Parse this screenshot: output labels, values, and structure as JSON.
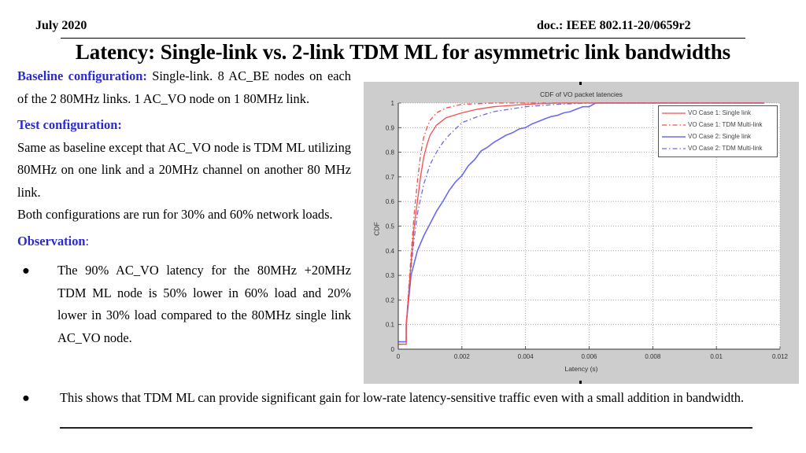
{
  "header": {
    "date": "July 2020",
    "doc_id": "doc.: IEEE 802.11-20/0659r2",
    "title": "Latency: Single-link vs.  2-link TDM ML for asymmetric link bandwidths"
  },
  "left_column": {
    "baseline_label": "Baseline configuration:",
    "baseline_text": " Single-link. 8 AC_BE nodes on each of the 2 80MHz links. 1 AC_VO node on 1 80MHz link.",
    "test_label": "Test configuration:",
    "test_text": "Same as baseline except that AC_VO node is TDM ML utilizing 80MHz on one link and a 20MHz channel on another 80 MHz link.",
    "loads_text": "Both configurations are run for 30% and 60% network loads.",
    "observation_label": "Observation",
    "observation_colon": ":",
    "bullet_char": "●",
    "observation_bullet": "The 90% AC_VO latency for the 80MHz +20MHz TDM ML node is 50% lower in 60% load and 20% lower in 30% load compared to the 80MHz single link AC_VO node."
  },
  "bottom": {
    "bullet_char": "●",
    "text": "This shows that TDM ML can provide significant gain for low-rate latency-sensitive traffic even with a small addition in bandwidth."
  },
  "colors": {
    "label_blue": "#2b2bd0",
    "case1_red": "#f05050",
    "case2_blue": "#6a6af0",
    "chart_bg": "#cdcdcd"
  },
  "chart_data": {
    "type": "line",
    "title": "CDF of VO packet latencies",
    "xlabel": "Latency (s)",
    "ylabel": "CDF",
    "xlim": [
      0,
      0.012
    ],
    "ylim": [
      0,
      1
    ],
    "xticks": [
      "0",
      "0.002",
      "0.004",
      "0.006",
      "0.008",
      "0.01",
      "0.012"
    ],
    "yticks": [
      "0",
      "0.1",
      "0.2",
      "0.3",
      "0.4",
      "0.5",
      "0.6",
      "0.7",
      "0.8",
      "0.9",
      "1"
    ],
    "grid": true,
    "legend_position": "upper right",
    "series": [
      {
        "name": "VO Case 1: Single link",
        "color": "#f05050",
        "style": "solid",
        "x": [
          0,
          0.00025,
          0.00025,
          0.0004,
          0.0005,
          0.0006,
          0.0007,
          0.0008,
          0.0009,
          0.001,
          0.0012,
          0.0015,
          0.002,
          0.0025,
          0.003,
          0.004,
          0.005,
          0.0115
        ],
        "y": [
          0.02,
          0.02,
          0.1,
          0.35,
          0.5,
          0.6,
          0.7,
          0.78,
          0.83,
          0.87,
          0.91,
          0.94,
          0.96,
          0.975,
          0.985,
          0.995,
          1.0,
          1.0
        ]
      },
      {
        "name": "VO Case 1: TDM Multi-link",
        "color": "#f05050",
        "style": "dashdot",
        "x": [
          0,
          0.00025,
          0.00025,
          0.0004,
          0.0005,
          0.0006,
          0.0007,
          0.0008,
          0.0009,
          0.001,
          0.0012,
          0.0015,
          0.002,
          0.003,
          0.0115
        ],
        "y": [
          0.02,
          0.02,
          0.1,
          0.38,
          0.55,
          0.68,
          0.79,
          0.86,
          0.9,
          0.93,
          0.96,
          0.98,
          0.995,
          1.0,
          1.0
        ]
      },
      {
        "name": "VO Case 2: Single link",
        "color": "#6a6af0",
        "style": "solid",
        "x": [
          0,
          0.00025,
          0.00025,
          0.0004,
          0.0006,
          0.0008,
          0.001,
          0.0012,
          0.0014,
          0.0016,
          0.0018,
          0.002,
          0.0022,
          0.0024,
          0.0026,
          0.0028,
          0.003,
          0.0032,
          0.0034,
          0.0036,
          0.0038,
          0.004,
          0.0042,
          0.0044,
          0.0046,
          0.0048,
          0.005,
          0.0052,
          0.0054,
          0.0056,
          0.0058,
          0.006,
          0.0062,
          0.0115
        ],
        "y": [
          0.03,
          0.03,
          0.1,
          0.3,
          0.4,
          0.46,
          0.51,
          0.56,
          0.6,
          0.645,
          0.68,
          0.705,
          0.745,
          0.77,
          0.805,
          0.82,
          0.84,
          0.855,
          0.87,
          0.88,
          0.895,
          0.9,
          0.915,
          0.925,
          0.935,
          0.945,
          0.95,
          0.96,
          0.965,
          0.975,
          0.985,
          0.985,
          1.0,
          1.0
        ]
      },
      {
        "name": "VO Case 2: TDM Multi-link",
        "color": "#6a6af0",
        "style": "dashdot",
        "x": [
          0,
          0.00025,
          0.00025,
          0.0004,
          0.0005,
          0.0006,
          0.0008,
          0.001,
          0.0012,
          0.0014,
          0.0016,
          0.0018,
          0.002,
          0.0025,
          0.003,
          0.0035,
          0.004,
          0.005,
          0.006,
          0.0115
        ],
        "y": [
          0.02,
          0.02,
          0.1,
          0.33,
          0.45,
          0.55,
          0.67,
          0.75,
          0.8,
          0.84,
          0.87,
          0.895,
          0.92,
          0.945,
          0.965,
          0.975,
          0.985,
          0.995,
          1.0,
          1.0
        ]
      }
    ]
  }
}
